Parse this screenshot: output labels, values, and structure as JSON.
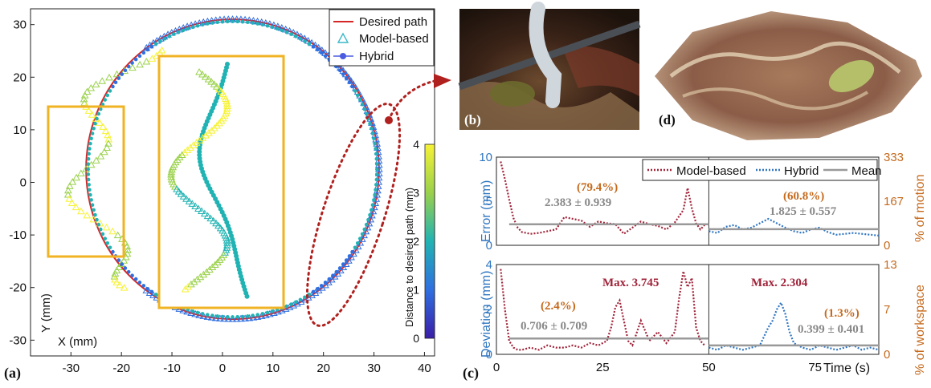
{
  "panels": {
    "a": {
      "label": "(a)"
    },
    "b": {
      "label": "(b)"
    },
    "c": {
      "label": "(c)"
    },
    "d": {
      "label": "(d)"
    }
  },
  "legend_a": {
    "desired": "Desired path",
    "model": "Model-based",
    "hybrid": "Hybrid"
  },
  "legend_c": {
    "model": "Model-based",
    "hybrid": "Hybrid",
    "mean": "Mean"
  },
  "annotations": {
    "pct_error_model": "(79.4%)",
    "pct_error_hybrid": "(60.8%)",
    "stat_error_model": "2.383 ± 0.939",
    "stat_error_hybrid": "1.825 ± 0.557",
    "pct_dev_model": "(2.4%)",
    "pct_dev_hybrid": "(1.3%)",
    "stat_dev_model": "0.706 ± 0.709",
    "stat_dev_hybrid": "0.399 ± 0.401",
    "max_model": "Max. 3.745",
    "max_hybrid": "Max. 2.304"
  },
  "colors": {
    "desired": "#d62728",
    "model": "#a0243a",
    "hybrid": "#2f76c0",
    "hybrid_marker": "#4a5de0",
    "mean": "#999999",
    "left_axis": "#2f76c0",
    "right_axis": "#c56a1d",
    "inset_box": "#f0b323"
  },
  "chart_data": [
    {
      "type": "scatter",
      "xlabel": "X (mm)",
      "ylabel": "Y (mm)",
      "xlim": [
        -38,
        42
      ],
      "ylim": [
        -33,
        33
      ],
      "x_ticks": [
        "-30",
        "-20",
        "-10",
        "0",
        "10",
        "20",
        "30",
        "40"
      ],
      "y_ticks": [
        "30",
        "20",
        "10",
        "0",
        "-10",
        "-20",
        "-30"
      ],
      "colorbar": {
        "label": "Distance to desired path (mm)",
        "range": [
          0,
          4
        ],
        "ticks": [
          "0",
          "1",
          "2",
          "3",
          "4"
        ]
      },
      "series": [
        {
          "name": "Desired path",
          "shape": "circle",
          "center": [
            2,
            2.5
          ],
          "radius_x": 29,
          "radius_y": 28.5
        },
        {
          "name": "Model-based"
        },
        {
          "name": "Hybrid"
        }
      ]
    },
    {
      "type": "line",
      "ylabel": "Error (mm)",
      "ylabel_right": "% of motion",
      "ylim": [
        0,
        10
      ],
      "y_ticks": [
        "10",
        "5",
        "0"
      ],
      "right_ticks": [
        "333",
        "167",
        "0"
      ],
      "xlim": [
        0,
        90
      ],
      "x_split": 50,
      "series": [
        {
          "name": "Model-based",
          "x": [
            1,
            2,
            3,
            4,
            5,
            6,
            8,
            10,
            12,
            14,
            16,
            18,
            20,
            22,
            24,
            26,
            28,
            30,
            32,
            34,
            36,
            38,
            40,
            42,
            44,
            45,
            46,
            47,
            48,
            49
          ],
          "values": [
            9.5,
            7.5,
            5.2,
            3.1,
            2.0,
            1.5,
            1.3,
            1.4,
            1.6,
            1.8,
            3.2,
            3.0,
            2.8,
            2.1,
            2.7,
            2.5,
            2.4,
            1.3,
            2.0,
            2.7,
            2.4,
            2.2,
            1.8,
            2.6,
            4.0,
            6.5,
            4.2,
            2.5,
            1.8,
            2.3
          ]
        },
        {
          "name": "Hybrid",
          "x": [
            50,
            52,
            54,
            56,
            58,
            60,
            62,
            64,
            66,
            68,
            70,
            72,
            74,
            76,
            78,
            80,
            82,
            84,
            86,
            88,
            90
          ],
          "values": [
            1.6,
            1.4,
            2.1,
            2.3,
            1.8,
            2.0,
            2.5,
            3.0,
            2.5,
            2.0,
            1.6,
            1.4,
            1.8,
            2.0,
            1.5,
            1.2,
            1.3,
            1.4,
            1.3,
            1.2,
            1.1
          ]
        },
        {
          "name": "Mean",
          "segments": [
            {
              "x": [
                3,
                50
              ],
              "value": 2.383
            },
            {
              "x": [
                50,
                90
              ],
              "value": 1.825
            }
          ]
        }
      ]
    },
    {
      "type": "line",
      "xlabel": "Time (s)",
      "ylabel": "Deviation (mm)",
      "ylabel_right": "% of workspace",
      "ylim": [
        0,
        4
      ],
      "y_ticks": [
        "4",
        "2",
        "0"
      ],
      "right_ticks": [
        "13",
        "7",
        "0"
      ],
      "xlim": [
        0,
        90
      ],
      "x_ticks": [
        "0",
        "25",
        "50",
        "75"
      ],
      "series": [
        {
          "name": "Model-based",
          "x": [
            1,
            2,
            3,
            4,
            5,
            6,
            8,
            10,
            12,
            14,
            16,
            18,
            20,
            22,
            24,
            26,
            27,
            28,
            29,
            30,
            31,
            32,
            34,
            36,
            38,
            40,
            42,
            43,
            44,
            45,
            46,
            47,
            48,
            49
          ],
          "values": [
            3.8,
            2.0,
            0.6,
            0.3,
            0.2,
            0.2,
            0.3,
            0.2,
            0.4,
            0.3,
            0.3,
            0.4,
            0.3,
            0.5,
            0.4,
            0.6,
            1.2,
            2.1,
            2.4,
            1.5,
            0.6,
            0.4,
            1.5,
            0.6,
            1.0,
            0.5,
            1.0,
            2.5,
            3.7,
            3.0,
            3.4,
            1.2,
            0.6,
            0.4
          ]
        },
        {
          "name": "Hybrid",
          "x": [
            50,
            52,
            54,
            56,
            58,
            60,
            62,
            63,
            64,
            65,
            66,
            67,
            68,
            69,
            70,
            72,
            74,
            76,
            78,
            80,
            82,
            84,
            86,
            88,
            90
          ],
          "values": [
            0.3,
            0.2,
            0.4,
            0.3,
            0.2,
            0.3,
            0.4,
            0.8,
            1.2,
            1.5,
            2.0,
            2.3,
            1.8,
            1.0,
            0.5,
            0.3,
            0.2,
            0.4,
            0.3,
            0.2,
            0.3,
            0.4,
            0.2,
            0.3,
            0.2
          ]
        },
        {
          "name": "Mean",
          "segments": [
            {
              "x": [
                3,
                50
              ],
              "value": 0.706
            },
            {
              "x": [
                50,
                90
              ],
              "value": 0.399
            }
          ]
        }
      ]
    }
  ]
}
